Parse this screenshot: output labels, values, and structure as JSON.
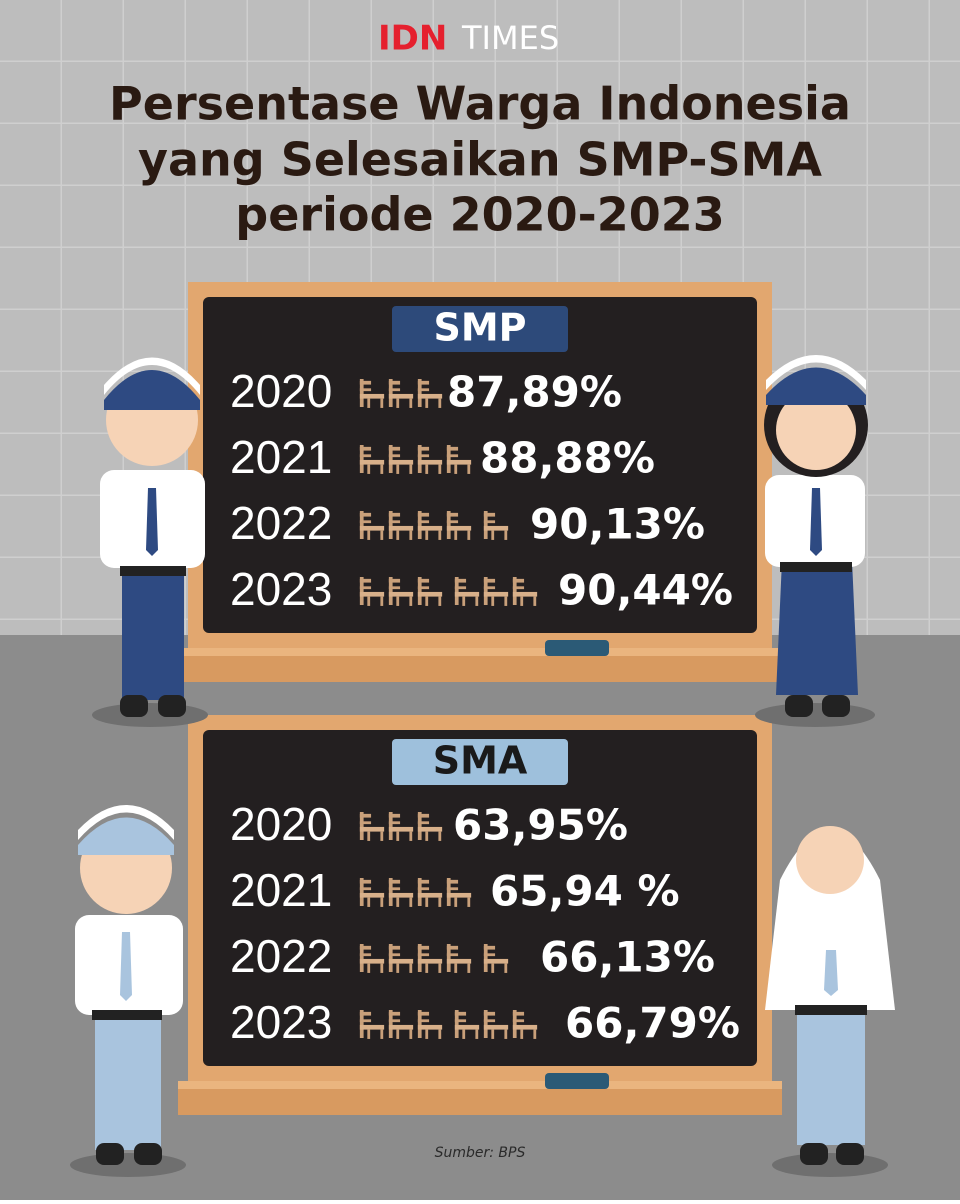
{
  "logo": {
    "brand": "IDN",
    "name": "TIMES"
  },
  "title": [
    "Persentase Warga Indonesia",
    "yang Selesaikan SMP-SMA",
    "periode 2020-2023"
  ],
  "boards": [
    {
      "label": "SMP",
      "rows": [
        {
          "year": "2020",
          "value": "87,89%"
        },
        {
          "year": "2021",
          "value": "88,88%"
        },
        {
          "year": "2022",
          "value": "90,13%"
        },
        {
          "year": "2023",
          "value": "90,44%"
        }
      ]
    },
    {
      "label": "SMA",
      "rows": [
        {
          "year": "2020",
          "value": "63,95%"
        },
        {
          "year": "2021",
          "value": "65,94 %"
        },
        {
          "year": "2022",
          "value": "66,13%"
        },
        {
          "year": "2023",
          "value": "66,79%"
        }
      ]
    }
  ],
  "source": "Sumber: BPS"
}
